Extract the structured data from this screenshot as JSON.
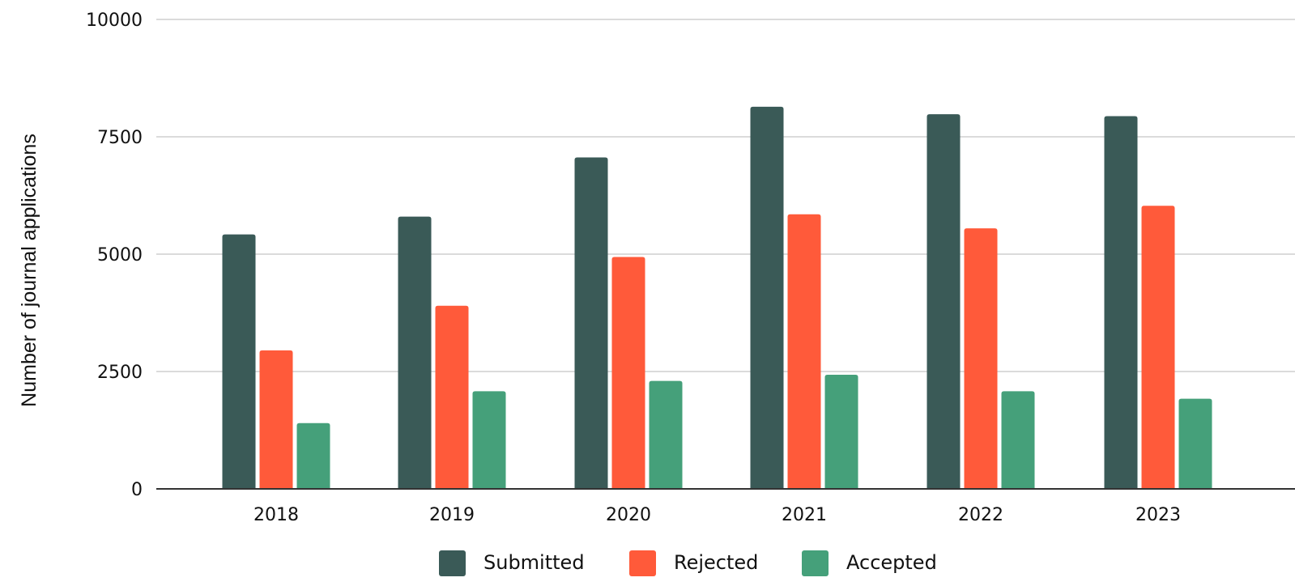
{
  "chart_data": {
    "type": "bar",
    "title": "",
    "xlabel": "",
    "ylabel": "Number of journal applications",
    "categories": [
      "2018",
      "2019",
      "2020",
      "2021",
      "2022",
      "2023"
    ],
    "ylim": [
      0,
      10000
    ],
    "yticks": [
      0,
      2500,
      5000,
      7500,
      10000
    ],
    "grid": true,
    "legend_position": "bottom",
    "series": [
      {
        "name": "Submitted",
        "color": "#3a5a57",
        "values": [
          5420,
          5800,
          7060,
          8140,
          7980,
          7940
        ]
      },
      {
        "name": "Rejected",
        "color": "#ff5a3a",
        "values": [
          2950,
          3900,
          4940,
          5850,
          5550,
          6030
        ]
      },
      {
        "name": "Accepted",
        "color": "#45a07a",
        "values": [
          1400,
          2080,
          2300,
          2430,
          2080,
          1920
        ]
      }
    ]
  }
}
